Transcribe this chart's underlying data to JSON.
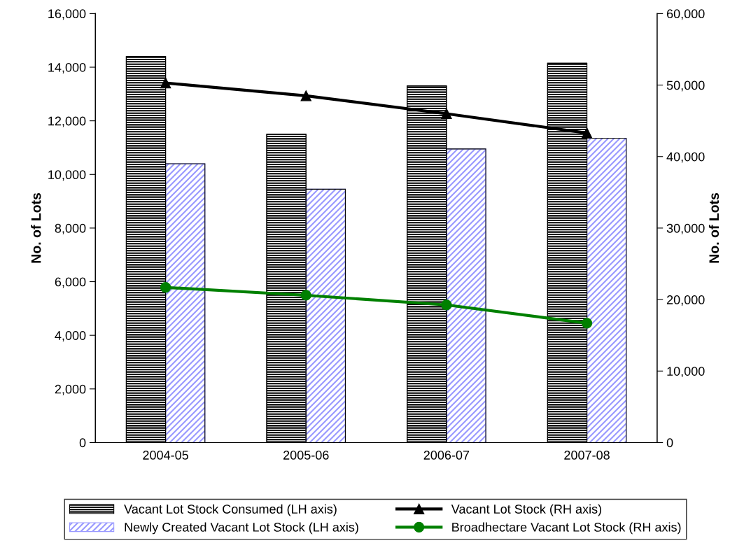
{
  "chart_data": {
    "type": "bar",
    "ylabel": "No. of Lots",
    "y2label": "No. of Lots",
    "categories": [
      "2004-05",
      "2005-06",
      "2006-07",
      "2007-08"
    ],
    "series": [
      {
        "name": "Vacant Lot Stock Consumed (LH axis)",
        "color": "#000000",
        "values": [
          14400,
          11500,
          13300,
          14150
        ]
      },
      {
        "name": "Newly Created Vacant Lot Stock (LH axis)",
        "color": "#9999ff",
        "values": [
          10400,
          9450,
          10950,
          11350
        ]
      },
      {
        "name": "Vacant Lot Stock (RH axis)",
        "type": "line",
        "axis": "y2",
        "marker": "triangle",
        "color": "#000000",
        "values": [
          50300,
          48500,
          46000,
          43300
        ]
      },
      {
        "name": "Broadhectare Vacant Lot Stock (RH axis)",
        "type": "line",
        "axis": "y2",
        "marker": "circle",
        "color": "#008000",
        "values": [
          21700,
          20600,
          19250,
          16700
        ]
      }
    ],
    "ylim": [
      0,
      16000
    ],
    "yticks": [
      {
        "value": 0,
        "label": "0"
      },
      {
        "value": 2000,
        "label": "2,000"
      },
      {
        "value": 4000,
        "label": "4,000"
      },
      {
        "value": 6000,
        "label": "6,000"
      },
      {
        "value": 8000,
        "label": "8,000"
      },
      {
        "value": 10000,
        "label": "10,000"
      },
      {
        "value": 12000,
        "label": "12,000"
      },
      {
        "value": 14000,
        "label": "14,000"
      },
      {
        "value": 16000,
        "label": "16,000"
      }
    ],
    "y2lim": [
      0,
      60000
    ],
    "y2ticks": [
      {
        "value": 0,
        "label": "0"
      },
      {
        "value": 10000,
        "label": "10,000"
      },
      {
        "value": 20000,
        "label": "20,000"
      },
      {
        "value": 30000,
        "label": "30,000"
      },
      {
        "value": 40000,
        "label": "40,000"
      },
      {
        "value": 50000,
        "label": "50,000"
      },
      {
        "value": 60000,
        "label": "60,000"
      }
    ],
    "grid": false,
    "legend": "bottom"
  }
}
